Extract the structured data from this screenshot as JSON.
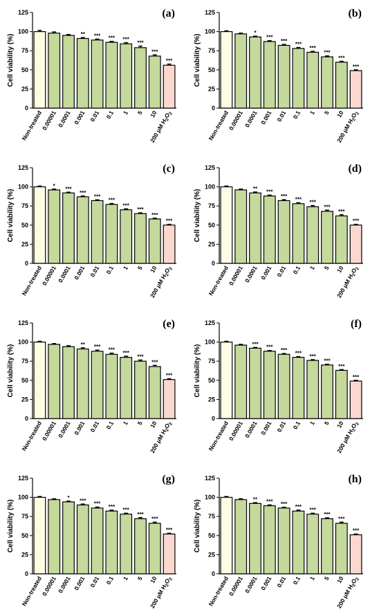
{
  "colors": {
    "control": "#fdfde4",
    "treatment": "#c4d99b",
    "h2o2": "#fad8d0",
    "stroke": "#000000"
  },
  "chart_data": [
    {
      "type": "bar",
      "panel_label": "(a)",
      "ylabel": "Cell viability (%)",
      "ylim": [
        0,
        125
      ],
      "yticks": [
        0,
        25,
        50,
        75,
        100,
        125
      ],
      "categories": [
        "Non-treated",
        "0.00001",
        "0.0001",
        "0.001",
        "0.01",
        "0.1",
        "1",
        "5",
        "10",
        "200 μM H₂O₂"
      ],
      "values": [
        100,
        98,
        95,
        91,
        89,
        86,
        84,
        79,
        68,
        56
      ],
      "errors": [
        1.5,
        1.5,
        1.2,
        1.2,
        1.2,
        1.2,
        1.5,
        2,
        1.5,
        1.5
      ],
      "significance": [
        "",
        "",
        "",
        "**",
        "***",
        "***",
        "***",
        "***",
        "***",
        "***"
      ]
    },
    {
      "type": "bar",
      "panel_label": "(b)",
      "ylabel": "Cell viability (%)",
      "ylim": [
        0,
        125
      ],
      "yticks": [
        0,
        25,
        50,
        75,
        100,
        125
      ],
      "categories": [
        "Non-treated",
        "0.00001",
        "0.0001",
        "0.001",
        "0.01",
        "0.1",
        "1",
        "5",
        "10",
        "200 μM H₂O₂"
      ],
      "values": [
        100,
        97,
        93,
        87,
        82,
        78,
        73,
        67,
        60,
        49
      ],
      "errors": [
        1,
        1,
        1,
        1.2,
        1.2,
        1.2,
        1.2,
        1.2,
        1.2,
        1
      ],
      "significance": [
        "",
        "",
        "*",
        "***",
        "***",
        "***",
        "***",
        "***",
        "***",
        "***"
      ]
    },
    {
      "type": "bar",
      "panel_label": "(c)",
      "ylabel": "Cell viability (%)",
      "ylim": [
        0,
        125
      ],
      "yticks": [
        0,
        25,
        50,
        75,
        100,
        125
      ],
      "categories": [
        "Non-treated",
        "0.00001",
        "0.0001",
        "0.001",
        "0.01",
        "0.1",
        "1",
        "5",
        "10",
        "200 μM H₂O₂"
      ],
      "values": [
        100,
        96,
        92,
        87,
        82,
        77,
        70,
        65,
        58,
        50
      ],
      "errors": [
        1,
        1,
        1,
        1,
        1,
        1.2,
        1.2,
        1,
        1,
        1
      ],
      "significance": [
        "",
        "*",
        "***",
        "***",
        "***",
        "***",
        "***",
        "***",
        "***",
        "***"
      ]
    },
    {
      "type": "bar",
      "panel_label": "(d)",
      "ylabel": "Cell viability (%)",
      "ylim": [
        0,
        125
      ],
      "yticks": [
        0,
        25,
        50,
        75,
        100,
        125
      ],
      "categories": [
        "Non-treated",
        "0.00001",
        "0.0001",
        "0.001",
        "0.01",
        "0.1",
        "1",
        "5",
        "10",
        "200 μM H₂O₂"
      ],
      "values": [
        100,
        96,
        92,
        88,
        82,
        78,
        74,
        68,
        62,
        50
      ],
      "errors": [
        1,
        1,
        1.2,
        1.2,
        1.2,
        1.2,
        1.5,
        1.5,
        1.5,
        1
      ],
      "significance": [
        "",
        "",
        "**",
        "***",
        "***",
        "***",
        "***",
        "***",
        "***",
        "***"
      ]
    },
    {
      "type": "bar",
      "panel_label": "(e)",
      "ylabel": "Cell viability (%)",
      "ylim": [
        0,
        125
      ],
      "yticks": [
        0,
        25,
        50,
        75,
        100,
        125
      ],
      "categories": [
        "Non-treated",
        "0.00001",
        "0.0001",
        "0.001",
        "0.01",
        "0.1",
        "1",
        "5",
        "10",
        "200 μM H₂O₂"
      ],
      "values": [
        100,
        97,
        94,
        91,
        88,
        84,
        80,
        75,
        68,
        51
      ],
      "errors": [
        1,
        1,
        1.2,
        1.5,
        1.5,
        1.5,
        1.5,
        1.5,
        1.5,
        1
      ],
      "significance": [
        "",
        "",
        "",
        "**",
        "***",
        "***",
        "***",
        "***",
        "***",
        "***"
      ]
    },
    {
      "type": "bar",
      "panel_label": "(f)",
      "ylabel": "Cell viability (%)",
      "ylim": [
        0,
        125
      ],
      "yticks": [
        0,
        25,
        50,
        75,
        100,
        125
      ],
      "categories": [
        "Non-treated",
        "0.00001",
        "0.0001",
        "0.001",
        "0.01",
        "0.1",
        "1",
        "5",
        "10",
        "200 μM H₂O₂"
      ],
      "values": [
        100,
        96,
        92,
        88,
        84,
        80,
        76,
        70,
        63,
        49
      ],
      "errors": [
        1,
        1,
        1,
        1,
        1,
        1,
        1,
        1,
        1,
        1
      ],
      "significance": [
        "",
        "",
        "***",
        "***",
        "***",
        "***",
        "***",
        "***",
        "***",
        "***"
      ]
    },
    {
      "type": "bar",
      "panel_label": "(g)",
      "ylabel": "Cell viability (%)",
      "ylim": [
        0,
        125
      ],
      "yticks": [
        0,
        25,
        50,
        75,
        100,
        125
      ],
      "categories": [
        "Non-treated",
        "0.00001",
        "0.0001",
        "0.001",
        "0.01",
        "0.1",
        "1",
        "5",
        "10",
        "200 μM H₂O₂"
      ],
      "values": [
        100,
        97,
        94,
        90,
        86,
        82,
        78,
        72,
        66,
        52
      ],
      "errors": [
        1,
        1,
        1,
        1.2,
        1.2,
        1.2,
        1.2,
        1.5,
        1.5,
        1
      ],
      "significance": [
        "",
        "",
        "*",
        "***",
        "***",
        "***",
        "***",
        "***",
        "***",
        "***"
      ]
    },
    {
      "type": "bar",
      "panel_label": "(h)",
      "ylabel": "Cell viability (%)",
      "ylim": [
        0,
        125
      ],
      "yticks": [
        0,
        25,
        50,
        75,
        100,
        125
      ],
      "categories": [
        "Non-treated",
        "0.00001",
        "0.0001",
        "0.001",
        "0.01",
        "0.1",
        "1",
        "5",
        "10",
        "200 μM H₂O₂"
      ],
      "values": [
        100,
        97,
        92,
        89,
        86,
        82,
        78,
        72,
        66,
        51
      ],
      "errors": [
        1,
        1,
        1,
        1,
        1,
        1.2,
        1.2,
        1.2,
        1.5,
        1
      ],
      "significance": [
        "",
        "",
        "**",
        "***",
        "***",
        "***",
        "***",
        "***",
        "***",
        "***"
      ]
    }
  ]
}
